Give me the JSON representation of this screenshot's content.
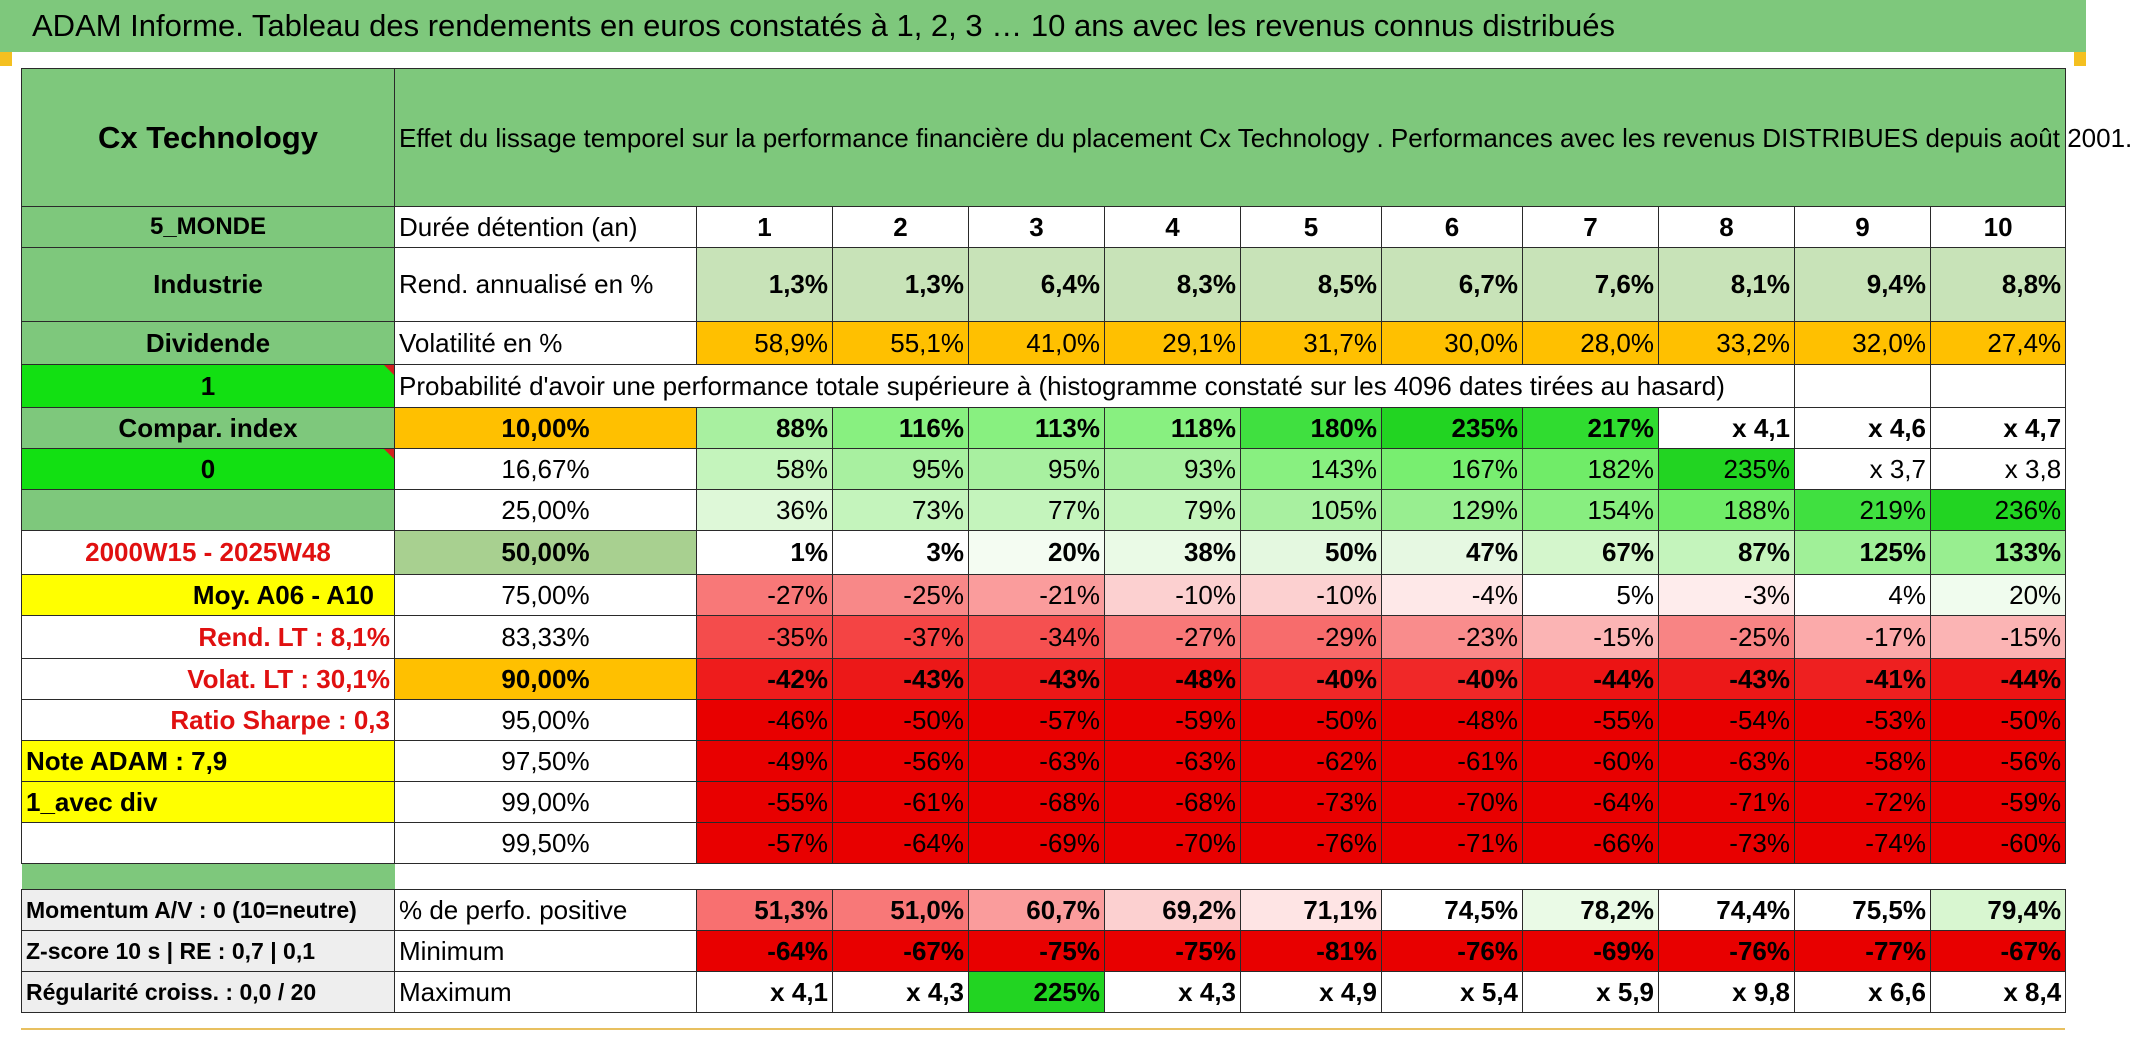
{
  "banner": {
    "title": "ADAM Informe. Tableau des rendements en euros constatés à 1, 2, 3 … 10 ans avec les revenus connus distribués"
  },
  "colors": {
    "header_green": "#7ec87c",
    "bright_green": "#12e012",
    "orange": "#ffc000",
    "yellow": "#ffff00",
    "accent_red": "#e01010"
  },
  "left": {
    "title": "Cx Technology",
    "zone": "5_MONDE",
    "sector": "Industrie",
    "income": "Dividende",
    "flag1": "1",
    "compar": "Compar. index",
    "flag0": "0",
    "period": "2000W15 - 2025W48",
    "moy": "Moy. A06 - A10",
    "rend_lt": "Rend. LT :   8,1%",
    "volat_lt": "Volat. LT :   30,1%",
    "sharpe": "Ratio Sharpe :    0,3",
    "note": "Note ADAM : 7,9",
    "div": "1_avec div",
    "momentum": "Momentum A/V : 0 (10=neutre)",
    "zscore": "Z-score 10 s | RE : 0,7 | 0,1",
    "regularite": "Régularité croiss. : 0,0 / 20"
  },
  "header": {
    "description": "Effet du lissage temporel sur la performance financière du placement Cx Technology . Performances avec les revenus DISTRIBUES depuis août 2001.",
    "duree_label": "Durée détention (an)",
    "years": [
      "1",
      "2",
      "3",
      "4",
      "5",
      "6",
      "7",
      "8",
      "9",
      "10"
    ]
  },
  "rend": {
    "label": "Rend. annualisé en %",
    "values": [
      "1,3%",
      "1,3%",
      "6,4%",
      "8,3%",
      "8,5%",
      "6,7%",
      "7,6%",
      "8,1%",
      "9,4%",
      "8,8%"
    ],
    "colors": [
      "#c8e3b8",
      "#c8e3b8",
      "#c8e3b8",
      "#c8e3b8",
      "#c8e3b8",
      "#c8e3b8",
      "#c8e3b8",
      "#c8e3b8",
      "#c8e3b8",
      "#c8e3b8"
    ]
  },
  "vol": {
    "label": "Volatilité en %",
    "values": [
      "58,9%",
      "55,1%",
      "41,0%",
      "29,1%",
      "31,7%",
      "30,0%",
      "28,0%",
      "33,2%",
      "32,0%",
      "27,4%"
    ],
    "colors": [
      "#ffc000",
      "#ffc000",
      "#ffc000",
      "#ffc000",
      "#ffc000",
      "#ffc000",
      "#ffc000",
      "#ffc000",
      "#ffc000",
      "#ffc000"
    ]
  },
  "proba_title": "Probabilité d'avoir une performance totale supérieure à (histogramme constaté sur les 4096 dates tirées au hasard)",
  "quantiles": [
    {
      "label": "10,00%",
      "lbg": "#ffc000",
      "bold": true,
      "values": [
        "88%",
        "116%",
        "113%",
        "118%",
        "180%",
        "235%",
        "217%",
        "x 4,1",
        "x 4,6",
        "x 4,7"
      ],
      "colors": [
        "#a8f0a0",
        "#88f080",
        "#88f080",
        "#88f080",
        "#40e040",
        "#22d422",
        "#30dc30",
        "#ffffff",
        "#ffffff",
        "#ffffff"
      ]
    },
    {
      "label": "16,67%",
      "lbg": "#ffffff",
      "bold": false,
      "values": [
        "58%",
        "95%",
        "95%",
        "93%",
        "143%",
        "167%",
        "182%",
        "235%",
        "x 3,7",
        "x 3,8"
      ],
      "colors": [
        "#c4f4bc",
        "#a8f0a0",
        "#a8f0a0",
        "#a8f0a0",
        "#88f080",
        "#78ee70",
        "#70ec68",
        "#22d422",
        "#ffffff",
        "#ffffff"
      ]
    },
    {
      "label": "25,00%",
      "lbg": "#ffffff",
      "bold": false,
      "values": [
        "36%",
        "73%",
        "77%",
        "79%",
        "105%",
        "129%",
        "154%",
        "188%",
        "219%",
        "236%"
      ],
      "colors": [
        "#def8d8",
        "#c4f4bc",
        "#c4f4bc",
        "#c4f4bc",
        "#a8f0a0",
        "#98ee90",
        "#88ee80",
        "#70ec68",
        "#40e040",
        "#22d422"
      ]
    },
    {
      "label": "50,00%",
      "lbg": "#a8d090",
      "bold": true,
      "big": true,
      "values": [
        "1%",
        "3%",
        "20%",
        "38%",
        "50%",
        "47%",
        "67%",
        "87%",
        "125%",
        "133%"
      ],
      "colors": [
        "#ffffff",
        "#ffffff",
        "#f4fcf2",
        "#eafaE6",
        "#e4f8e0",
        "#e6f8e2",
        "#d4f6cc",
        "#c4f4bc",
        "#a0f098",
        "#98ee90"
      ]
    },
    {
      "label": "75,00%",
      "lbg": "#ffffff",
      "bold": false,
      "values": [
        "-27%",
        "-25%",
        "-21%",
        "-10%",
        "-10%",
        "-4%",
        "5%",
        "-3%",
        "4%",
        "20%"
      ],
      "colors": [
        "#f87878",
        "#f88888",
        "#fa9c9c",
        "#fcd0d0",
        "#fcd0d0",
        "#fee8e8",
        "#ffffff",
        "#feecec",
        "#ffffff",
        "#f0fcee"
      ]
    },
    {
      "label": "83,33%",
      "lbg": "#ffffff",
      "bold": false,
      "values": [
        "-35%",
        "-37%",
        "-34%",
        "-27%",
        "-29%",
        "-23%",
        "-15%",
        "-25%",
        "-17%",
        "-15%"
      ],
      "colors": [
        "#f44c4c",
        "#f44444",
        "#f55050",
        "#f87878",
        "#f76c6c",
        "#f98c8c",
        "#fbb4b4",
        "#f88484",
        "#fbaaaa",
        "#fbb4b4"
      ]
    },
    {
      "label": "90,00%",
      "lbg": "#ffc000",
      "bold": true,
      "values": [
        "-42%",
        "-43%",
        "-43%",
        "-48%",
        "-40%",
        "-40%",
        "-44%",
        "-43%",
        "-41%",
        "-44%"
      ],
      "colors": [
        "#ee1c1c",
        "#ec1818",
        "#ec1818",
        "#e80a0a",
        "#f02828",
        "#f02828",
        "#ec1414",
        "#ec1818",
        "#ee2020",
        "#ec1414"
      ]
    },
    {
      "label": "95,00%",
      "lbg": "#ffffff",
      "bold": false,
      "values": [
        "-46%",
        "-50%",
        "-57%",
        "-59%",
        "-50%",
        "-48%",
        "-55%",
        "-54%",
        "-53%",
        "-50%"
      ],
      "colors": [
        "#e80000",
        "#e80000",
        "#e80000",
        "#e80000",
        "#e80000",
        "#e80000",
        "#e80000",
        "#e80000",
        "#e80000",
        "#e80000"
      ]
    },
    {
      "label": "97,50%",
      "lbg": "#ffffff",
      "bold": false,
      "values": [
        "-49%",
        "-56%",
        "-63%",
        "-63%",
        "-62%",
        "-61%",
        "-60%",
        "-63%",
        "-58%",
        "-56%"
      ],
      "colors": [
        "#e80000",
        "#e80000",
        "#e80000",
        "#e80000",
        "#e80000",
        "#e80000",
        "#e80000",
        "#e80000",
        "#e80000",
        "#e80000"
      ]
    },
    {
      "label": "99,00%",
      "lbg": "#ffffff",
      "bold": false,
      "values": [
        "-55%",
        "-61%",
        "-68%",
        "-68%",
        "-73%",
        "-70%",
        "-64%",
        "-71%",
        "-72%",
        "-59%"
      ],
      "colors": [
        "#e80000",
        "#e80000",
        "#e80000",
        "#e80000",
        "#e80000",
        "#e80000",
        "#e80000",
        "#e80000",
        "#e80000",
        "#e80000"
      ]
    },
    {
      "label": "99,50%",
      "lbg": "#ffffff",
      "bold": false,
      "values": [
        "-57%",
        "-64%",
        "-69%",
        "-70%",
        "-76%",
        "-71%",
        "-66%",
        "-73%",
        "-74%",
        "-60%"
      ],
      "colors": [
        "#e80000",
        "#e80000",
        "#e80000",
        "#e80000",
        "#e80000",
        "#e80000",
        "#e80000",
        "#e80000",
        "#e80000",
        "#e80000"
      ]
    }
  ],
  "stats": [
    {
      "label": "% de perfo. positive",
      "values": [
        "51,3%",
        "51,0%",
        "60,7%",
        "69,2%",
        "71,1%",
        "74,5%",
        "78,2%",
        "74,4%",
        "75,5%",
        "79,4%"
      ],
      "colors": [
        "#f87070",
        "#f87878",
        "#fa9c9c",
        "#fcd0d0",
        "#fee4e4",
        "#ffffff",
        "#eafae6",
        "#ffffff",
        "#ffffff",
        "#d8f6d0"
      ]
    },
    {
      "label": "Minimum",
      "values": [
        "-64%",
        "-67%",
        "-75%",
        "-75%",
        "-81%",
        "-76%",
        "-69%",
        "-76%",
        "-77%",
        "-67%"
      ],
      "colors": [
        "#e80000",
        "#e80000",
        "#e80000",
        "#e80000",
        "#e80000",
        "#e80000",
        "#e80000",
        "#e80000",
        "#e80000",
        "#e80000"
      ]
    },
    {
      "label": "Maximum",
      "values": [
        "x 4,1",
        "x 4,3",
        "225%",
        "x 4,3",
        "x 4,9",
        "x 5,4",
        "x 5,9",
        "x 9,8",
        "x 6,6",
        "x 8,4"
      ],
      "colors": [
        "#ffffff",
        "#ffffff",
        "#22d422",
        "#ffffff",
        "#ffffff",
        "#ffffff",
        "#ffffff",
        "#ffffff",
        "#ffffff",
        "#ffffff"
      ]
    }
  ]
}
